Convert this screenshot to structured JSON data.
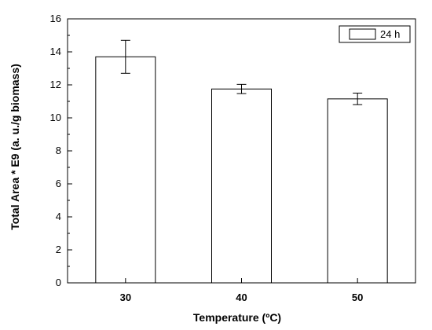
{
  "chart_data": {
    "type": "bar",
    "categories": [
      "30",
      "40",
      "50"
    ],
    "values": [
      13.7,
      11.75,
      11.15
    ],
    "errors": [
      1.0,
      0.28,
      0.35
    ],
    "series": [
      {
        "name": "24 h",
        "values": [
          13.7,
          11.75,
          11.15
        ]
      }
    ],
    "xlabel": "Temperature (ºC)",
    "ylabel": "Total Area * E9 (a. u./g biomass)",
    "ylim": [
      0,
      16
    ],
    "yticks": [
      "0",
      "2",
      "4",
      "6",
      "8",
      "10",
      "12",
      "14",
      "16"
    ],
    "legend": {
      "label": "24 h",
      "position": "top-right"
    },
    "grid": false,
    "colors": {
      "bar_fill": "#ffffff",
      "bar_stroke": "#000000",
      "axis": "#000000"
    }
  }
}
